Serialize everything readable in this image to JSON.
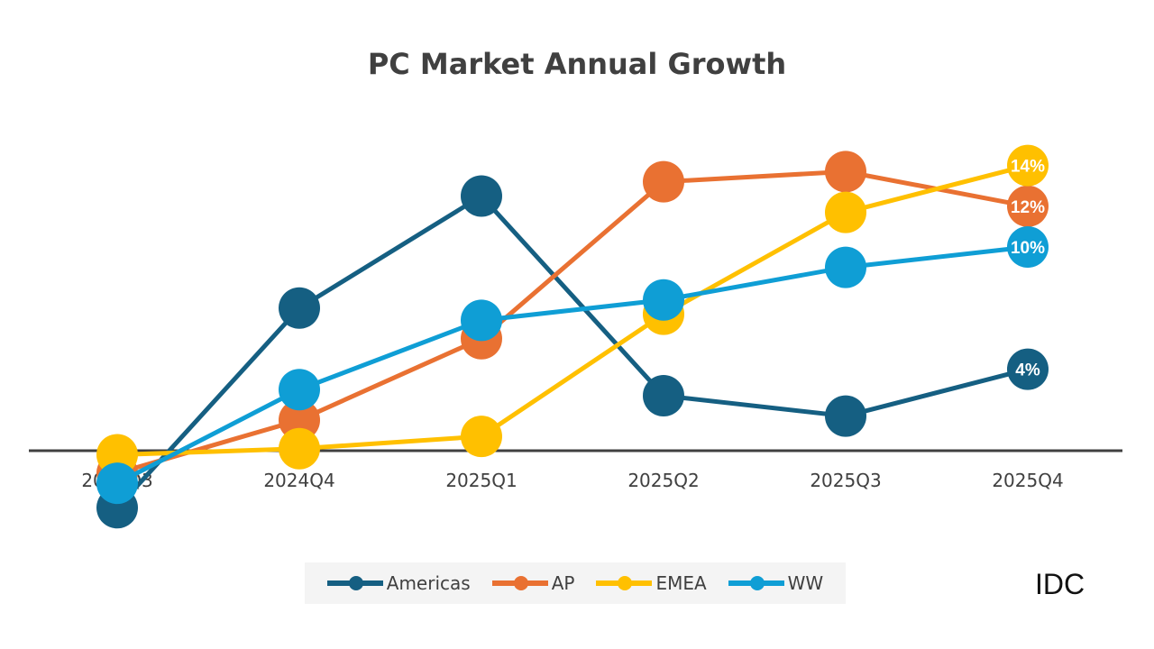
{
  "chart_data": {
    "type": "line",
    "title": "PC Market Annual Growth",
    "categories": [
      "2024Q3",
      "2024Q4",
      "2025Q1",
      "2025Q2",
      "2025Q3",
      "2025Q4"
    ],
    "unit": "%",
    "series": [
      {
        "name": "Americas",
        "color": "#155f82",
        "values": [
          -2.8,
          7.0,
          12.5,
          2.7,
          1.7,
          4
        ]
      },
      {
        "name": "AP",
        "color": "#e97132",
        "values": [
          -1.1,
          1.5,
          5.5,
          13.2,
          13.7,
          12
        ]
      },
      {
        "name": "EMEA",
        "color": "#ffc000",
        "values": [
          -0.2,
          0.1,
          0.7,
          6.7,
          11.7,
          14
        ]
      },
      {
        "name": "WW",
        "color": "#0f9ed5",
        "values": [
          -1.6,
          3.0,
          6.4,
          7.4,
          9.0,
          10
        ]
      }
    ],
    "end_labels": [
      "4%",
      "12%",
      "14%",
      "10%"
    ],
    "legend_position": "bottom",
    "grid": false,
    "source": "IDC"
  }
}
